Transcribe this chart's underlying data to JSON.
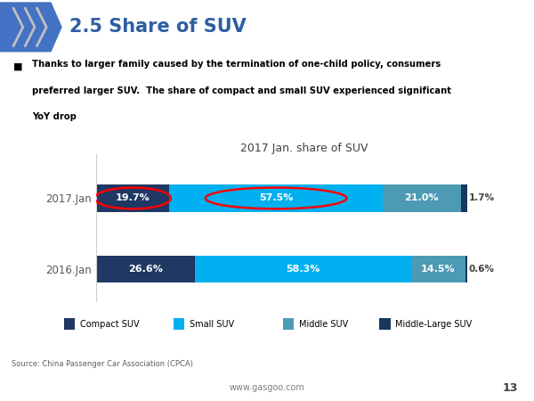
{
  "title": "2017 Jan. share of SUV",
  "years": [
    "2017.Jan",
    "2016.Jan"
  ],
  "categories": [
    "Compact SUV",
    "Small SUV",
    "Middle SUV",
    "Middle-Large SUV"
  ],
  "values_2017": [
    19.7,
    57.5,
    21.0,
    1.7
  ],
  "values_2016": [
    26.6,
    58.3,
    14.5,
    0.6
  ],
  "colors_2017": [
    "#1f3864",
    "#00b0f0",
    "#4d9ab5",
    "#17375e"
  ],
  "colors_2016": [
    "#1f3864",
    "#00b0f0",
    "#4d9ab5",
    "#17375e"
  ],
  "legend_colors": [
    "#1f3864",
    "#00b0f0",
    "#4d9ab5",
    "#17375e"
  ],
  "header_title": "2.5 Share of SUV",
  "header_blue": "#4472c4",
  "header_text_color": "#2e5fa3",
  "bullet_text": "Thanks to larger family caused by the termination of one-child policy, consumers preferred larger SUV.  The share of compact and small SUV experienced significant YoY drop",
  "source_text": "Source: China Passenger Car Association (CPCA)",
  "footer_text": "www.gasgoo.com",
  "page_number": "13",
  "background_color": "#ffffff",
  "yticklabel_color": "#595959",
  "title_color": "#404040",
  "footer_line_color": "#c0c0c0"
}
